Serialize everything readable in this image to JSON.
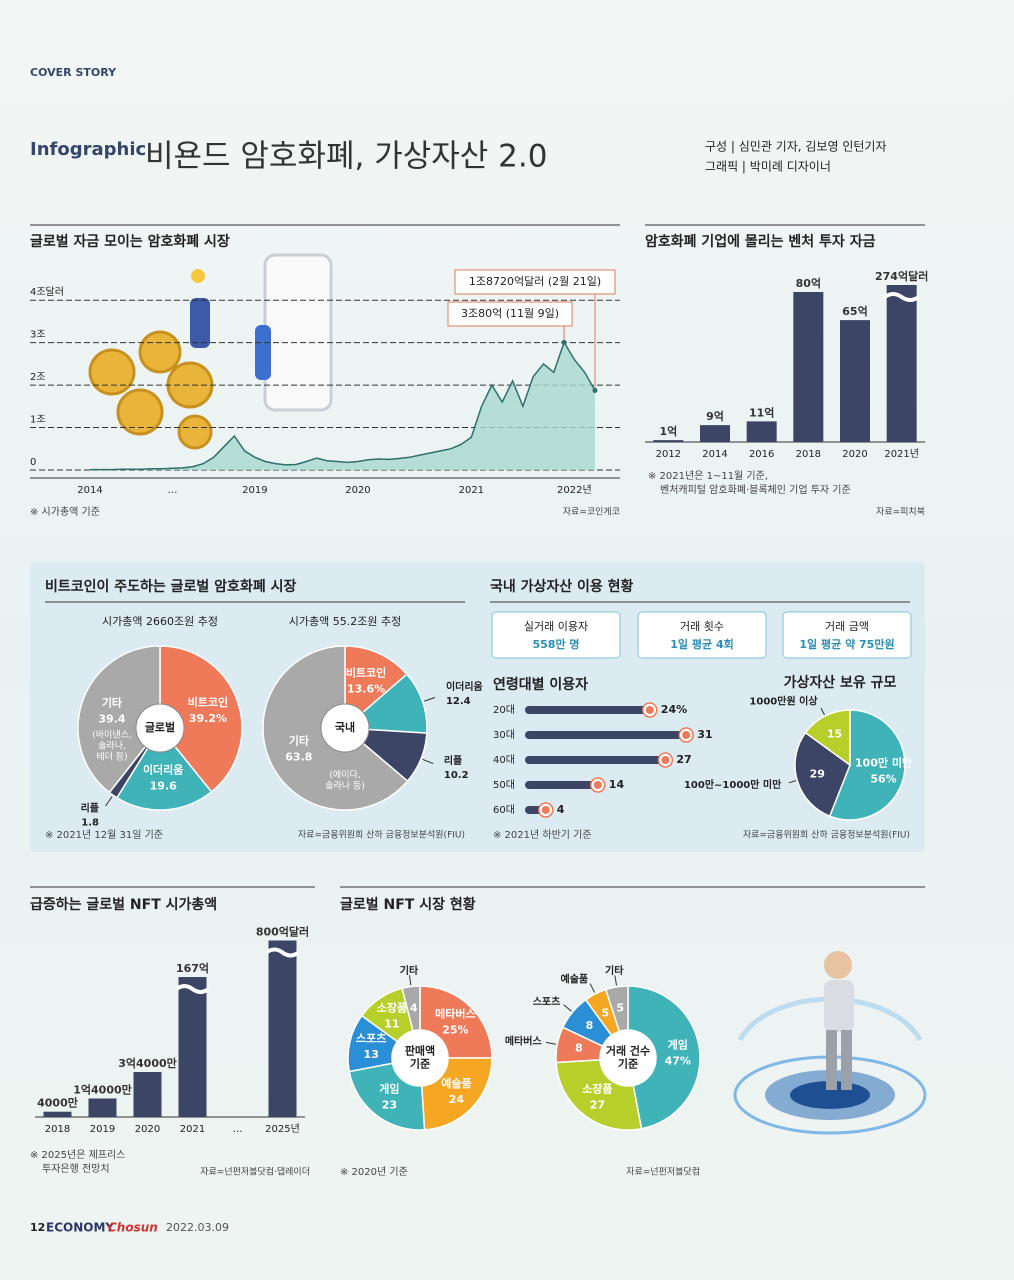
{
  "header": {
    "section": "COVER STORY",
    "kicker": "Infographic",
    "title": "비욘드 암호화폐, 가상자산 2.0",
    "credits": [
      "구성 | 심민관 기자, 김보영 인턴기자",
      "그래픽 | 박미례 디자이너"
    ]
  },
  "domestic_usage": {
    "title": "국내 가상자산 이용 현황",
    "stats": [
      {
        "label": "실거래 이용자",
        "value": "558만 명"
      },
      {
        "label": "거래 횟수",
        "value": "1일 평균 4회"
      },
      {
        "label": "거래 금액",
        "value": "1일 평균 약 75만원"
      }
    ]
  },
  "footer": {
    "page": "12",
    "brand": "ECONOMY",
    "brand_accent": "Chosun",
    "date": "2022.03.09"
  },
  "chart_data": [
    {
      "type": "line",
      "title": "글로벌 자금 모이는 암호화폐 시장",
      "categories": [
        "2014",
        null,
        null,
        null,
        null,
        null,
        null,
        null,
        "…",
        null,
        null,
        null,
        null,
        null,
        null,
        null,
        "2019",
        null,
        null,
        null,
        null,
        null,
        null,
        null,
        null,
        null,
        "2020",
        null,
        null,
        null,
        null,
        null,
        null,
        null,
        null,
        null,
        null,
        "2021",
        null,
        null,
        null,
        null,
        null,
        null,
        null,
        null,
        null,
        "2022년",
        null,
        null
      ],
      "values": [
        0.01,
        0.01,
        0.01,
        0.02,
        0.02,
        0.02,
        0.03,
        0.03,
        0.04,
        0.05,
        0.08,
        0.15,
        0.3,
        0.55,
        0.8,
        0.45,
        0.3,
        0.2,
        0.15,
        0.12,
        0.13,
        0.2,
        0.28,
        0.22,
        0.2,
        0.18,
        0.2,
        0.24,
        0.26,
        0.25,
        0.27,
        0.3,
        0.35,
        0.4,
        0.45,
        0.5,
        0.6,
        0.77,
        1.5,
        2.0,
        1.6,
        2.1,
        1.5,
        2.2,
        2.5,
        2.3,
        3.008,
        2.6,
        2.3,
        1.872
      ],
      "color": "#2f6f6c",
      "area_color": "#a8d8cf",
      "ylim": [
        0,
        4.5
      ],
      "yticks": [
        0,
        {
          "value": 1,
          "label": "1조"
        },
        {
          "value": 2,
          "label": "2조"
        },
        {
          "value": 3,
          "label": "3조"
        },
        {
          "value": 4,
          "label": "4조달러"
        }
      ],
      "grid": true,
      "annotations": [
        "1조8720억달러 (2월 21일)",
        "3조80억 (11월 9일)"
      ],
      "note": "※ 시가총액 기준",
      "source": "자료=코인게코"
    },
    {
      "type": "bar",
      "title": "암호화폐 기업에 몰리는 벤처 투자 자금",
      "categories": [
        "2012",
        "2014",
        "2016",
        "2018",
        "2020",
        "2021년"
      ],
      "values": [
        1,
        9,
        11,
        80,
        65,
        274
      ],
      "value_labels": [
        "1억",
        "9억",
        "11억",
        "80억",
        "65억",
        "274억달러"
      ],
      "color": "#3c4566",
      "note": [
        "※ 2021년은 1~11월 기준,",
        "벤처캐피털 암호화폐·블록체인 기업 투자 기준"
      ],
      "source": "자료=피치북"
    },
    {
      "type": "pie",
      "title": "비트코인이 주도하는 글로벌 암호화폐 시장",
      "subtitle": "시가총액 2660조원 추정",
      "center_label": [
        "글로벌"
      ],
      "categories": [
        "비트코인",
        "이더리움",
        "리플",
        "기타"
      ],
      "values": [
        39.2,
        19.6,
        1.8,
        39.4
      ],
      "value_labels": [
        "39.2%",
        "19.6",
        "1.8",
        "39.4"
      ],
      "colors": [
        "#ef7a5a",
        "#3fb3b8",
        "#3c4566",
        "#a9a9a9"
      ],
      "annotation": [
        "(바이낸스,",
        "솔라나,",
        "테더 등)"
      ],
      "note": "※ 2021년 12월 31일 기준"
    },
    {
      "type": "pie",
      "subtitle": "시가총액 55.2조원 추정",
      "center_label": [
        "국내"
      ],
      "categories": [
        "비트코인",
        "이더리움",
        "리플",
        "기타"
      ],
      "values": [
        13.6,
        12.4,
        10.2,
        63.8
      ],
      "value_labels": [
        "13.6%",
        "12.4",
        "10.2",
        "63.8"
      ],
      "colors": [
        "#ef7a5a",
        "#3fb3b8",
        "#3c4566",
        "#a9a9a9"
      ],
      "annotation": [
        "(에이다,",
        "솔라나 등)"
      ],
      "source": "자료=금융위원회 산하 금융정보분석원(FIU)"
    },
    {
      "type": "bar",
      "orientation": "horizontal",
      "title": "연령대별 이용자",
      "categories": [
        "20대",
        "30대",
        "40대",
        "50대",
        "60대"
      ],
      "values": [
        24,
        31,
        27,
        14,
        4
      ],
      "value_labels": [
        "24%",
        "31",
        "27",
        "14",
        "4"
      ],
      "color": "#3c4566",
      "marker_color": "#ef7a5a",
      "note": "※ 2021년 하반기 기준"
    },
    {
      "type": "pie",
      "title": "가상자산 보유 규모",
      "categories": [
        "100만 미만",
        "100만~1000만 미만",
        "1000만원 이상"
      ],
      "values": [
        56,
        29,
        15
      ],
      "value_labels": [
        "56%",
        "29",
        "15"
      ],
      "colors": [
        "#3fb3b8",
        "#3c4566",
        "#b6cf2a"
      ],
      "source": "자료=금융위원회 산하 금융정보분석원(FIU)"
    },
    {
      "type": "bar",
      "title": "급증하는 글로벌 NFT 시가총액",
      "categories": [
        "2018",
        "2019",
        "2020",
        "2021",
        "…",
        "2025년"
      ],
      "values": [
        40000000,
        140000000,
        340000000,
        16700000000,
        null,
        80000000000
      ],
      "value_labels": [
        "4000만",
        "1억4000만",
        "3억4000만",
        "167억",
        null,
        "800억달러"
      ],
      "color": "#3c4566",
      "note": [
        "※ 2025년은 제프리스",
        "투자은행 전망치"
      ],
      "source": "자료=넌펀저블닷컴·댑레이더"
    },
    {
      "type": "donut",
      "title": "글로벌 NFT 시장 현황",
      "center_label": [
        "판매액",
        "기준"
      ],
      "categories": [
        "메타버스",
        "예술품",
        "게임",
        "스포츠",
        "소장품",
        "기타"
      ],
      "values": [
        25,
        24,
        23,
        13,
        11,
        4
      ],
      "value_labels": [
        "25%",
        "24",
        "23",
        "13",
        "11",
        "4"
      ],
      "colors": [
        "#ef7a5a",
        "#f5a623",
        "#3fb3b8",
        "#2a8fd6",
        "#b6cf2a",
        "#a9a9a9"
      ],
      "note": "※ 2020년 기준"
    },
    {
      "type": "donut",
      "center_label": [
        "거래 건수",
        "기준"
      ],
      "categories": [
        "게임",
        "소장품",
        "메타버스",
        "스포츠",
        "예술품",
        "기타"
      ],
      "values": [
        47,
        27,
        8,
        8,
        5,
        5
      ],
      "value_labels": [
        "47%",
        "27",
        "8",
        "8",
        "5",
        "5"
      ],
      "colors": [
        "#3fb3b8",
        "#b6cf2a",
        "#ef7a5a",
        "#2a8fd6",
        "#f5a623",
        "#a9a9a9"
      ],
      "source": "자료=넌펀저블닷컴"
    }
  ]
}
